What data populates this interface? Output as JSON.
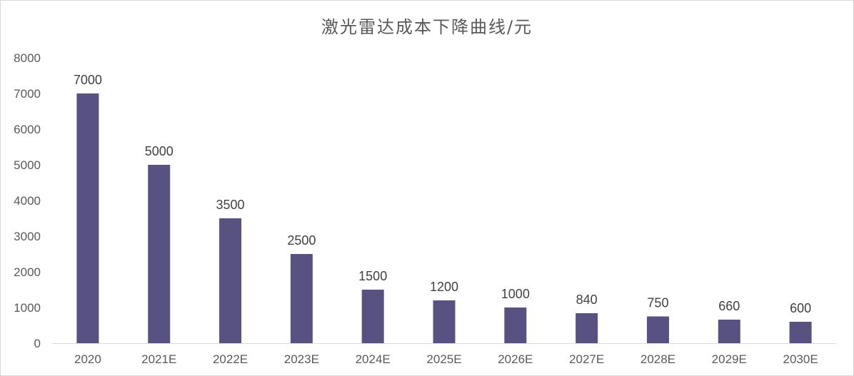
{
  "chart_data": {
    "type": "bar",
    "title": "激光雷达成本下降曲线/元",
    "xlabel": "",
    "ylabel": "",
    "categories": [
      "2020",
      "2021E",
      "2022E",
      "2023E",
      "2024E",
      "2025E",
      "2026E",
      "2027E",
      "2028E",
      "2029E",
      "2030E"
    ],
    "values": [
      7000,
      5000,
      3500,
      2500,
      1500,
      1200,
      1000,
      840,
      750,
      660,
      600
    ],
    "ylim": [
      0,
      8000
    ],
    "yticks": [
      0,
      1000,
      2000,
      3000,
      4000,
      5000,
      6000,
      7000,
      8000
    ],
    "grid": false,
    "legend": "none",
    "bar_color": "#575281",
    "data_labels": true
  }
}
